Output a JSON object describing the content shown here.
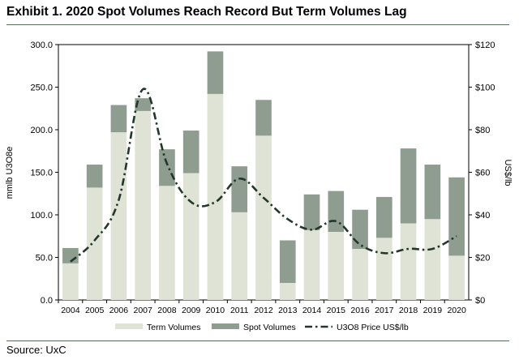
{
  "page": {
    "title": "Exhibit 1. 2020 Spot Volumes Reach Record But Term Volumes Lag",
    "source": "Source: UxC"
  },
  "colors": {
    "term": "#dfe3d5",
    "spot": "#8e9d90",
    "price_line": "#23362a",
    "rule": "#5a6d58"
  },
  "chart_data": {
    "type": "bar",
    "stacked": true,
    "categories": [
      "2004",
      "2005",
      "2006",
      "2007",
      "2008",
      "2009",
      "2010",
      "2011",
      "2012",
      "2013",
      "2014",
      "2015",
      "2016",
      "2017",
      "2018",
      "2019",
      "2020"
    ],
    "series": [
      {
        "name": "Term Volumes",
        "axis": "left",
        "kind": "bar",
        "values": [
          43,
          132,
          197,
          222,
          134,
          149,
          242,
          103,
          193,
          20,
          82,
          80,
          60,
          73,
          90,
          95,
          52
        ]
      },
      {
        "name": "Spot Volumes",
        "axis": "left",
        "kind": "bar",
        "values": [
          18,
          27,
          32,
          15,
          43,
          50,
          50,
          54,
          42,
          50,
          42,
          48,
          46,
          48,
          88,
          64,
          92
        ]
      },
      {
        "name": "U3O8 Price US$/lb",
        "axis": "right",
        "kind": "line",
        "style": "dash-dot",
        "values": [
          18,
          28,
          47,
          99,
          64,
          46,
          46,
          57,
          48,
          38,
          33,
          37,
          26,
          22,
          24,
          24,
          30
        ]
      }
    ],
    "ylabel": "mmlb U3O8e",
    "y2label": "US$/lb",
    "ylim": [
      0,
      300
    ],
    "y2lim": [
      0,
      120
    ],
    "yticks": [
      "0.0",
      "50.0",
      "100.0",
      "150.0",
      "200.0",
      "250.0",
      "300.0"
    ],
    "y2ticks": [
      "$0",
      "$20",
      "$40",
      "$60",
      "$80",
      "$100",
      "$120"
    ],
    "legend": {
      "position": "bottom",
      "labels": [
        "Term Volumes",
        "Spot Volumes",
        "U3O8 Price US$/lb"
      ]
    },
    "grid": false
  }
}
